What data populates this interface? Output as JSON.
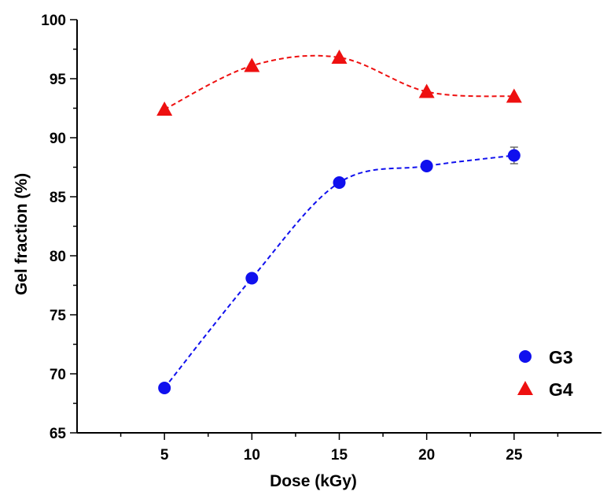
{
  "chart_data": {
    "type": "scatter",
    "title": "",
    "xlabel": "Dose (kGy)",
    "ylabel": "Gel fraction (%)",
    "xlim": [
      0,
      30
    ],
    "ylim": [
      65,
      100
    ],
    "x_ticks": [
      5,
      10,
      15,
      20,
      25
    ],
    "y_ticks": [
      65,
      70,
      75,
      80,
      85,
      90,
      95,
      100
    ],
    "grid": false,
    "legend_position": "bottom-right",
    "series": [
      {
        "name": "G3",
        "marker": "circle",
        "color": "#1010ee",
        "x": [
          5,
          10,
          15,
          20,
          25
        ],
        "y": [
          68.8,
          78.1,
          86.2,
          87.6,
          88.5
        ],
        "error": [
          0,
          0,
          0,
          0,
          0.7
        ],
        "fit_line": "dashed"
      },
      {
        "name": "G4",
        "marker": "triangle",
        "color": "#ee1010",
        "x": [
          5,
          10,
          15,
          20,
          25
        ],
        "y": [
          92.4,
          96.1,
          96.8,
          93.9,
          93.5
        ],
        "error": [
          0,
          0,
          0,
          0,
          0
        ],
        "fit_line": "dashed"
      }
    ]
  }
}
